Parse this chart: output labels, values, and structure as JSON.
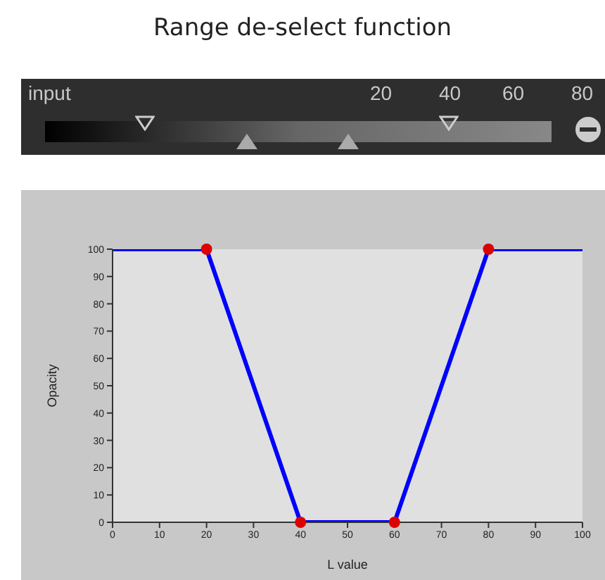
{
  "chart_data": {
    "type": "line",
    "title": "Range de-select function",
    "xlabel": "L value",
    "ylabel": "Opacity",
    "annotations": [
      "input",
      "20",
      "40",
      "60",
      "80"
    ],
    "xlim": [
      0,
      100
    ],
    "xticks": [
      0,
      10,
      20,
      30,
      40,
      50,
      60,
      70,
      80,
      90,
      100
    ],
    "ylim": [
      0,
      100
    ],
    "yticks": [
      0,
      10,
      20,
      30,
      40,
      50,
      60,
      70,
      80,
      90,
      100
    ],
    "series": [
      {
        "color": "#0000ff",
        "marker": "none",
        "x": [
          0,
          20,
          40,
          60,
          80,
          100
        ],
        "values": [
          100,
          100,
          0,
          0,
          100,
          100
        ]
      },
      {
        "type": "scatter",
        "color": "#dd0000",
        "marker": "circle",
        "x": [
          20,
          40,
          60,
          80
        ],
        "values": [
          100,
          0,
          0,
          100
        ]
      }
    ]
  }
}
